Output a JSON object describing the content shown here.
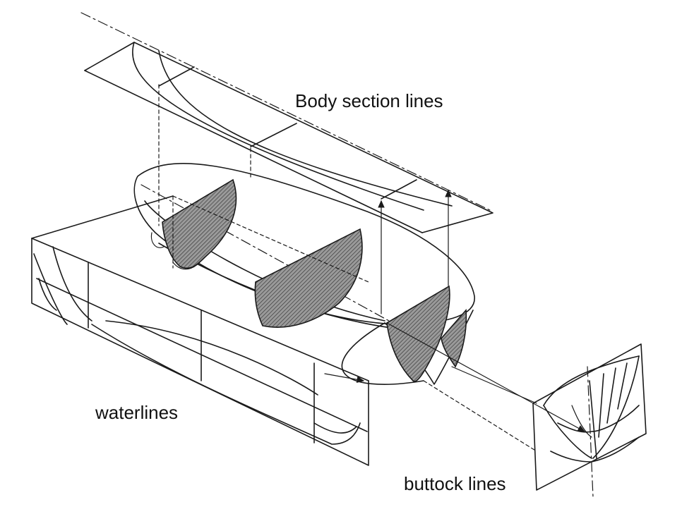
{
  "labels": {
    "body_section": "Body section lines",
    "waterlines": "waterlines",
    "buttock": "buttock lines"
  },
  "colors": {
    "ink": "#1a1a1a",
    "hatch": "#555555",
    "background": "#ffffff"
  }
}
